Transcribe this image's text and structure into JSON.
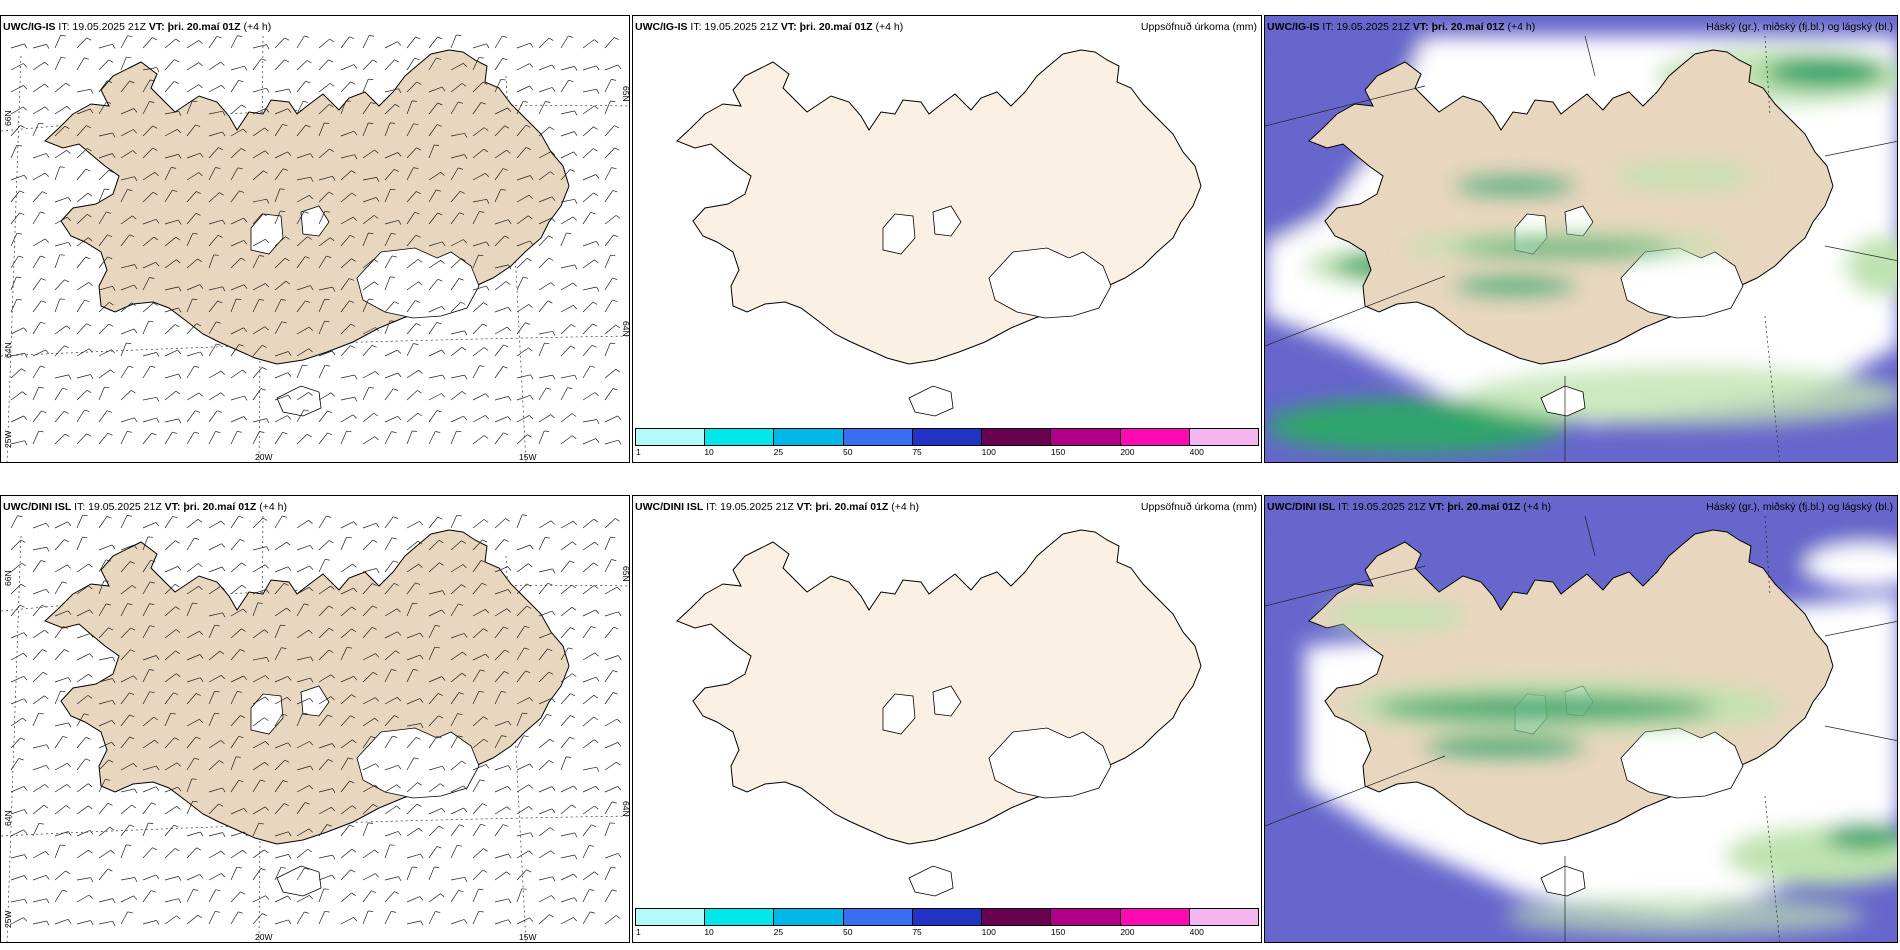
{
  "colors": {
    "land_beige": "#e8d6be",
    "land_cream": "#fbf0e4",
    "glacier": "#ffffff",
    "sea_blue": "#6666cc",
    "cloud_green": "#2fa56a",
    "cloud_light": "#bfe3b0"
  },
  "rows": [
    {
      "model": "UWC/IG-IS",
      "it": "IT: 19.05.2025 21Z",
      "vt": "VT: þri. 20.maí 01Z",
      "lead": "(+4 h)"
    },
    {
      "model": "UWC/DINI ISL",
      "it": "IT: 19.05.2025 21Z",
      "vt": "VT: þri. 20.maí 01Z",
      "lead": "(+4 h)"
    }
  ],
  "products": {
    "precip": "Uppsöfnuð úrkoma (mm)",
    "clouds": "Háský (gr.), miðský (fj.bl.) og lágský (bl.)"
  },
  "axis_labels": {
    "lat_66": "66N",
    "lat_64": "64N",
    "lat_65r": "65N",
    "lat_64r": "64N",
    "lon_25": "25W",
    "lon_20": "20W",
    "lon_15": "15W"
  },
  "colorbar": {
    "ticks": [
      "1",
      "10",
      "25",
      "50",
      "75",
      "100",
      "150",
      "200",
      "400"
    ],
    "colors": [
      "#b3fbfb",
      "#00e8ec",
      "#00b8e8",
      "#3a6ef0",
      "#2234c4",
      "#6a0050",
      "#b0008a",
      "#ff0ab4",
      "#f6b4f0"
    ]
  }
}
